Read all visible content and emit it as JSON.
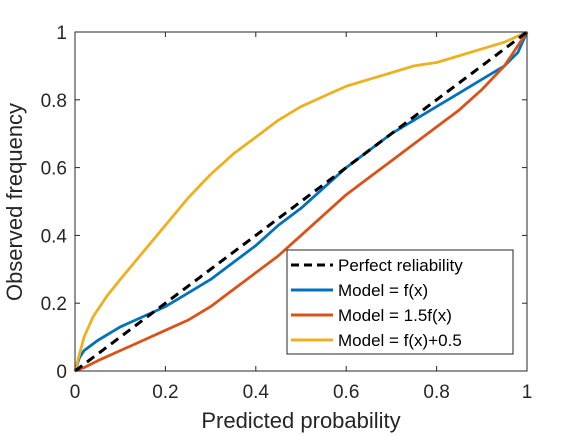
{
  "chart_data": {
    "type": "line",
    "title": "",
    "xlabel": "Predicted probability",
    "ylabel": "Observed frequency",
    "xlim": [
      0,
      1
    ],
    "ylim": [
      0,
      1
    ],
    "x_ticks": [
      "0",
      "0.2",
      "0.4",
      "0.6",
      "0.8",
      "1"
    ],
    "y_ticks": [
      "0",
      "0.2",
      "0.4",
      "0.6",
      "0.8",
      "1"
    ],
    "grid": false,
    "legend_position": "bottom-right",
    "series": [
      {
        "name": "Perfect reliability",
        "color": "#000000",
        "style": "dashed",
        "x": [
          0,
          1
        ],
        "y": [
          0,
          1
        ]
      },
      {
        "name": "Model = f(x)",
        "color": "#0072BD",
        "style": "solid",
        "x": [
          0,
          0.01,
          0.02,
          0.05,
          0.1,
          0.15,
          0.2,
          0.25,
          0.3,
          0.35,
          0.4,
          0.45,
          0.5,
          0.55,
          0.6,
          0.65,
          0.7,
          0.75,
          0.8,
          0.85,
          0.9,
          0.95,
          0.98,
          1
        ],
        "y": [
          0,
          0.04,
          0.06,
          0.09,
          0.13,
          0.16,
          0.19,
          0.23,
          0.27,
          0.32,
          0.37,
          0.43,
          0.48,
          0.54,
          0.6,
          0.65,
          0.7,
          0.74,
          0.78,
          0.82,
          0.86,
          0.9,
          0.94,
          1
        ]
      },
      {
        "name": "Model = 1.5f(x)",
        "color": "#D95319",
        "style": "solid",
        "x": [
          0,
          0.02,
          0.05,
          0.1,
          0.15,
          0.2,
          0.25,
          0.3,
          0.35,
          0.4,
          0.45,
          0.5,
          0.55,
          0.6,
          0.65,
          0.7,
          0.75,
          0.8,
          0.85,
          0.9,
          0.95,
          1
        ],
        "y": [
          0,
          0.01,
          0.03,
          0.06,
          0.09,
          0.12,
          0.15,
          0.19,
          0.24,
          0.29,
          0.34,
          0.4,
          0.46,
          0.52,
          0.57,
          0.62,
          0.67,
          0.72,
          0.77,
          0.83,
          0.9,
          1
        ]
      },
      {
        "name": "Model = f(x)+0.5",
        "color": "#EDB120",
        "style": "solid",
        "x": [
          0,
          0.01,
          0.02,
          0.04,
          0.07,
          0.1,
          0.15,
          0.2,
          0.25,
          0.3,
          0.35,
          0.4,
          0.45,
          0.5,
          0.55,
          0.6,
          0.65,
          0.7,
          0.75,
          0.8,
          0.85,
          0.9,
          0.95,
          1
        ],
        "y": [
          0,
          0.05,
          0.1,
          0.16,
          0.22,
          0.27,
          0.35,
          0.43,
          0.51,
          0.58,
          0.64,
          0.69,
          0.74,
          0.78,
          0.81,
          0.84,
          0.86,
          0.88,
          0.9,
          0.91,
          0.93,
          0.95,
          0.97,
          1
        ]
      }
    ]
  }
}
